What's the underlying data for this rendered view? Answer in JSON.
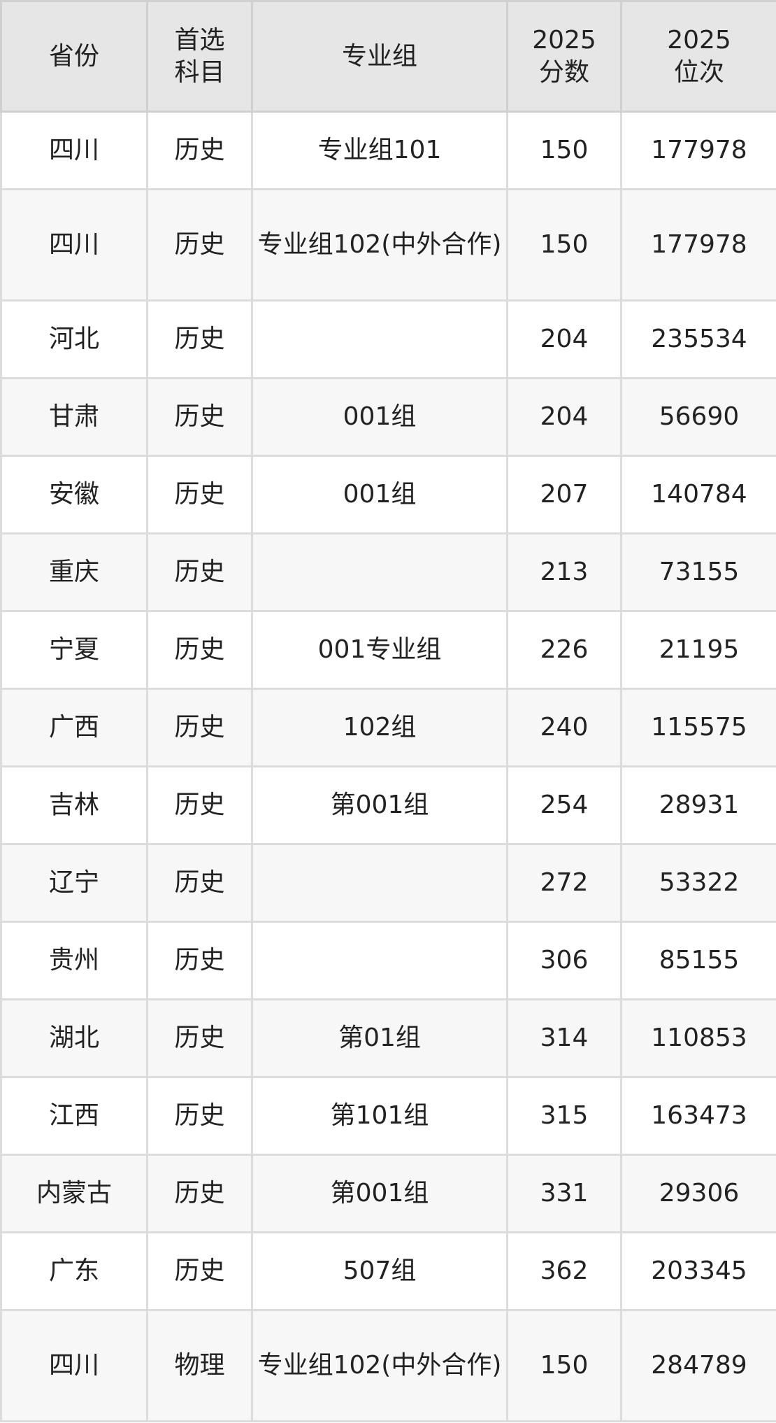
{
  "headers": [
    "省份",
    "首选科目",
    "专业组",
    "2025分数",
    "2025位次"
  ],
  "header_lines": [
    [
      "省份"
    ],
    [
      "首选",
      "科目"
    ],
    [
      "专业组"
    ],
    [
      "2025",
      "分数"
    ],
    [
      "2025",
      "位次"
    ]
  ],
  "rows": [
    [
      "四川",
      "历史",
      "专业组101",
      "150",
      "177978"
    ],
    [
      "四川",
      "历史",
      "专业组102(中外合作)",
      "150",
      "177978"
    ],
    [
      "河北",
      "历史",
      "",
      "204",
      "235534"
    ],
    [
      "甘肃",
      "历史",
      "001组",
      "204",
      "56690"
    ],
    [
      "安徽",
      "历史",
      "001组",
      "207",
      "140784"
    ],
    [
      "重庆",
      "历史",
      "",
      "213",
      "73155"
    ],
    [
      "宁夏",
      "历史",
      "001专业组",
      "226",
      "21195"
    ],
    [
      "广西",
      "历史",
      "102组",
      "240",
      "115575"
    ],
    [
      "吉林",
      "历史",
      "第001组",
      "254",
      "28931"
    ],
    [
      "辽宁",
      "历史",
      "",
      "272",
      "53322"
    ],
    [
      "贵州",
      "历史",
      "",
      "306",
      "85155"
    ],
    [
      "湖北",
      "历史",
      "第01组",
      "314",
      "110853"
    ],
    [
      "江西",
      "历史",
      "第101组",
      "315",
      "163473"
    ],
    [
      "内蒙古",
      "历史",
      "第001组",
      "331",
      "29306"
    ],
    [
      "广东",
      "历史",
      "507组",
      "362",
      "203345"
    ],
    [
      "四川",
      "物理",
      "专业组102(中外合作)",
      "150",
      "284789"
    ]
  ]
}
